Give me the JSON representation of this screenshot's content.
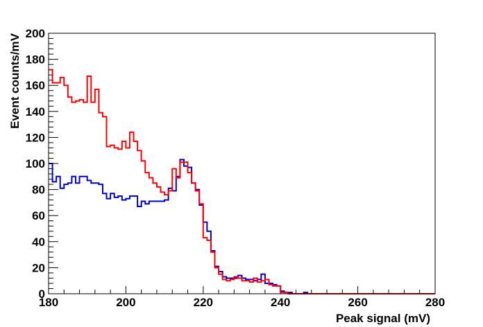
{
  "chart_data": {
    "type": "step",
    "title": "",
    "xlabel": "Peak signal (mV)",
    "ylabel": "Event counts/mV",
    "xlim": [
      180,
      280
    ],
    "ylim": [
      0,
      200
    ],
    "x_ticks": [
      "180",
      "200",
      "220",
      "240",
      "260",
      "280"
    ],
    "y_ticks": [
      "0",
      "20",
      "40",
      "60",
      "80",
      "100",
      "120",
      "140",
      "160",
      "180",
      "200"
    ],
    "grid": false,
    "legend": "none",
    "series": [
      {
        "color": "#0000cc",
        "x": [
          180,
          181,
          182,
          183,
          184,
          185,
          186,
          187,
          188,
          189,
          190,
          191,
          192,
          193,
          194,
          195,
          196,
          197,
          198,
          199,
          200,
          201,
          202,
          203,
          204,
          205,
          206,
          207,
          208,
          209,
          210,
          211,
          212,
          213,
          214,
          215,
          216,
          217,
          218,
          219,
          220,
          221,
          222,
          223,
          224,
          225,
          226,
          227,
          228,
          229,
          230,
          231,
          232,
          233,
          234,
          235,
          236,
          237,
          238,
          239,
          240,
          241,
          242,
          243,
          244,
          245,
          246,
          247,
          248,
          249,
          250,
          251,
          252,
          253,
          254,
          255,
          256,
          257,
          258,
          259,
          260,
          261,
          262,
          263,
          264,
          265,
          266,
          267,
          268,
          269,
          270,
          271,
          272,
          273,
          274,
          275,
          276,
          277,
          278,
          279
        ],
        "values": [
          100,
          86,
          90,
          81,
          84,
          85,
          90,
          85,
          90,
          90,
          87,
          85,
          85,
          84,
          77,
          73,
          77,
          74,
          75,
          72,
          73,
          75,
          75,
          67,
          71,
          69,
          71,
          71,
          71,
          71,
          72,
          81,
          79,
          90,
          103,
          98,
          97,
          85,
          80,
          68,
          55,
          48,
          33,
          21,
          17,
          13,
          12,
          12,
          12,
          14,
          12,
          11,
          11,
          10,
          11,
          15,
          8,
          8,
          7,
          6,
          2,
          1,
          1,
          0,
          0,
          0,
          1,
          0,
          0,
          0,
          0,
          0,
          0,
          0,
          0,
          0,
          0,
          0,
          0,
          0,
          0,
          0,
          0,
          0,
          0,
          0,
          0,
          0,
          0,
          0,
          0,
          0,
          0,
          0,
          0,
          0,
          0,
          0,
          0,
          0
        ]
      },
      {
        "color": "#ff0000",
        "x": [
          180,
          181,
          182,
          183,
          184,
          185,
          186,
          187,
          188,
          189,
          190,
          191,
          192,
          193,
          194,
          195,
          196,
          197,
          198,
          199,
          200,
          201,
          202,
          203,
          204,
          205,
          206,
          207,
          208,
          209,
          210,
          211,
          212,
          213,
          214,
          215,
          216,
          217,
          218,
          219,
          220,
          221,
          222,
          223,
          224,
          225,
          226,
          227,
          228,
          229,
          230,
          231,
          232,
          233,
          234,
          235,
          236,
          237,
          238,
          239,
          240,
          241,
          242,
          243,
          244,
          245,
          246,
          247,
          248,
          249,
          250,
          251,
          252,
          253,
          254,
          255,
          256,
          257,
          258,
          259,
          260,
          261,
          262,
          263,
          264,
          265,
          266,
          267,
          268,
          269,
          270,
          271,
          272,
          273,
          274,
          275,
          276,
          277,
          278,
          279
        ],
        "values": [
          172,
          162,
          162,
          166,
          160,
          151,
          147,
          148,
          149,
          147,
          167,
          147,
          157,
          139,
          136,
          113,
          114,
          112,
          111,
          117,
          112,
          124,
          117,
          110,
          102,
          93,
          89,
          85,
          82,
          78,
          76,
          79,
          96,
          89,
          101,
          101,
          93,
          85,
          79,
          69,
          43,
          41,
          32,
          20,
          15,
          11,
          10,
          11,
          13,
          12,
          10,
          10,
          9,
          12,
          9,
          10,
          11,
          7,
          6,
          6,
          1,
          1,
          0,
          0,
          0,
          0,
          0,
          0,
          0,
          0,
          0,
          0,
          0,
          0,
          0,
          0,
          0,
          0,
          0,
          0,
          0,
          0,
          0,
          0,
          0,
          0,
          0,
          0,
          0,
          0,
          0,
          0,
          0,
          0,
          0,
          0,
          0,
          0,
          0,
          0
        ]
      }
    ]
  }
}
